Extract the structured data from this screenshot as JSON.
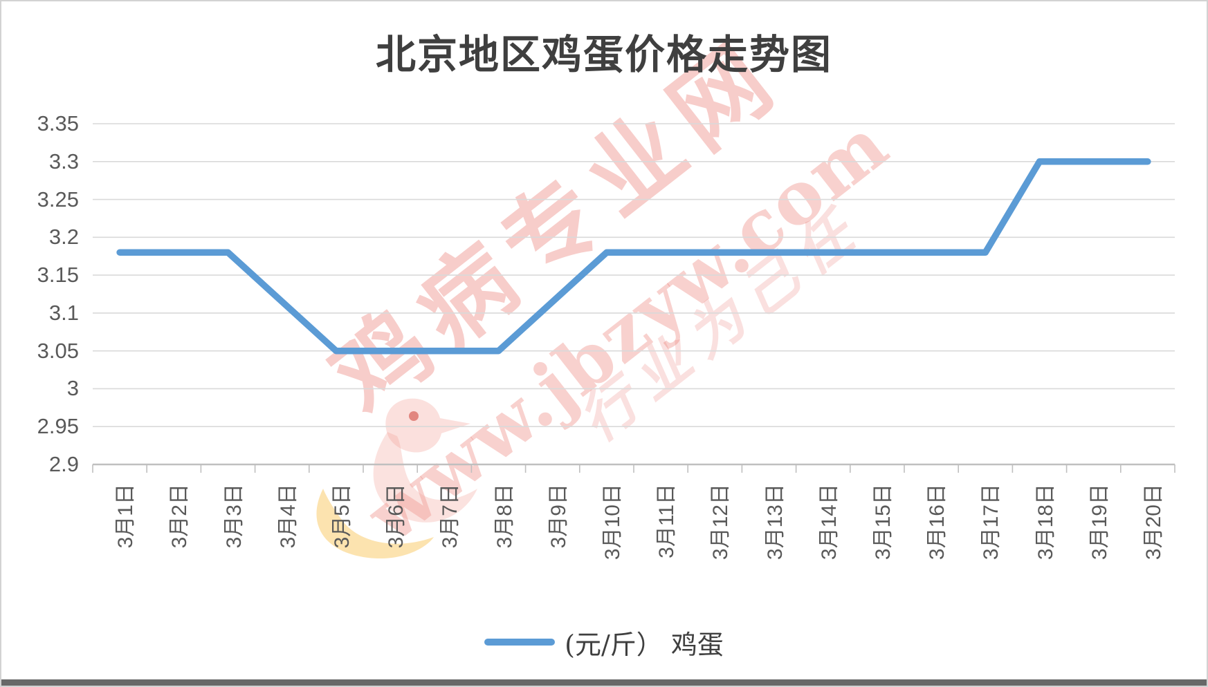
{
  "page": {
    "frame_border_color": "#d2d2d2",
    "bottom_bar_color": "#686868",
    "background": "#ffffff"
  },
  "watermark": {
    "brand": "鸡病专业网",
    "url": "www.jbzyw.com",
    "slogan": "行业为己任",
    "color": "#E7665E"
  },
  "chart_data": {
    "type": "line",
    "title": "北京地区鸡蛋价格走势图",
    "categories": [
      "3月1日",
      "3月2日",
      "3月3日",
      "3月4日",
      "3月5日",
      "3月6日",
      "3月7日",
      "3月8日",
      "3月9日",
      "3月10日",
      "3月11日",
      "3月12日",
      "3月13日",
      "3月14日",
      "3月15日",
      "3月16日",
      "3月17日",
      "3月18日",
      "3月19日",
      "3月20日"
    ],
    "series": [
      {
        "name": "(元/斤） 鸡蛋",
        "values": [
          3.18,
          3.18,
          3.18,
          3.115,
          3.05,
          3.05,
          3.05,
          3.05,
          3.115,
          3.18,
          3.18,
          3.18,
          3.18,
          3.18,
          3.18,
          3.18,
          3.18,
          3.3,
          3.3,
          3.3
        ]
      }
    ],
    "xlabel": "",
    "ylabel": "",
    "ylim": [
      2.9,
      3.35
    ],
    "y_tick_labels": [
      "3.35",
      "3.3",
      "3.25",
      "3.2",
      "3.15",
      "3.1",
      "3.05",
      "3",
      "2.95",
      "2.9"
    ],
    "y_tick_values": [
      3.35,
      3.3,
      3.25,
      3.2,
      3.15,
      3.1,
      3.05,
      3.0,
      2.95,
      2.9
    ],
    "grid": true,
    "legend_position": "bottom",
    "colors": {
      "line": "#5B9BD5",
      "gridline": "#D9D9D9",
      "axis": "#BFBFBF",
      "tick_label": "#595959",
      "title": "#3F3F3F"
    }
  }
}
